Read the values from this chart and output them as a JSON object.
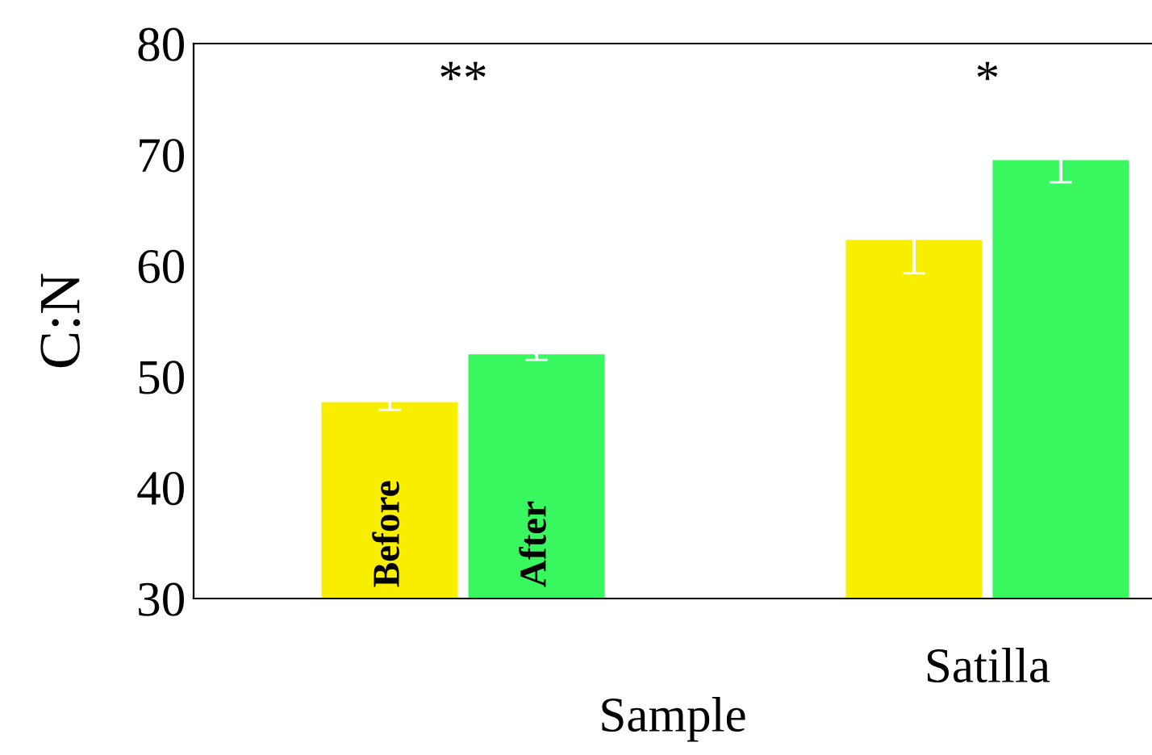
{
  "chart_data": {
    "type": "bar",
    "xlabel": "Sample",
    "ylabel": "C:N",
    "categories": [
      null,
      "Satilla"
    ],
    "series": [
      {
        "name": "Before",
        "color": "#f8ee00",
        "values": [
          47.7,
          62.3
        ],
        "errors": [
          0.7,
          3.0
        ]
      },
      {
        "name": "After",
        "color": "#38f75f",
        "values": [
          52.0,
          69.5
        ],
        "errors": [
          0.5,
          2.0
        ]
      }
    ],
    "annotations": [
      "**",
      "*"
    ],
    "ylim": [
      30,
      80
    ],
    "yticks": [
      30,
      40,
      50,
      60,
      70,
      80
    ],
    "grid": false,
    "legend": false
  }
}
